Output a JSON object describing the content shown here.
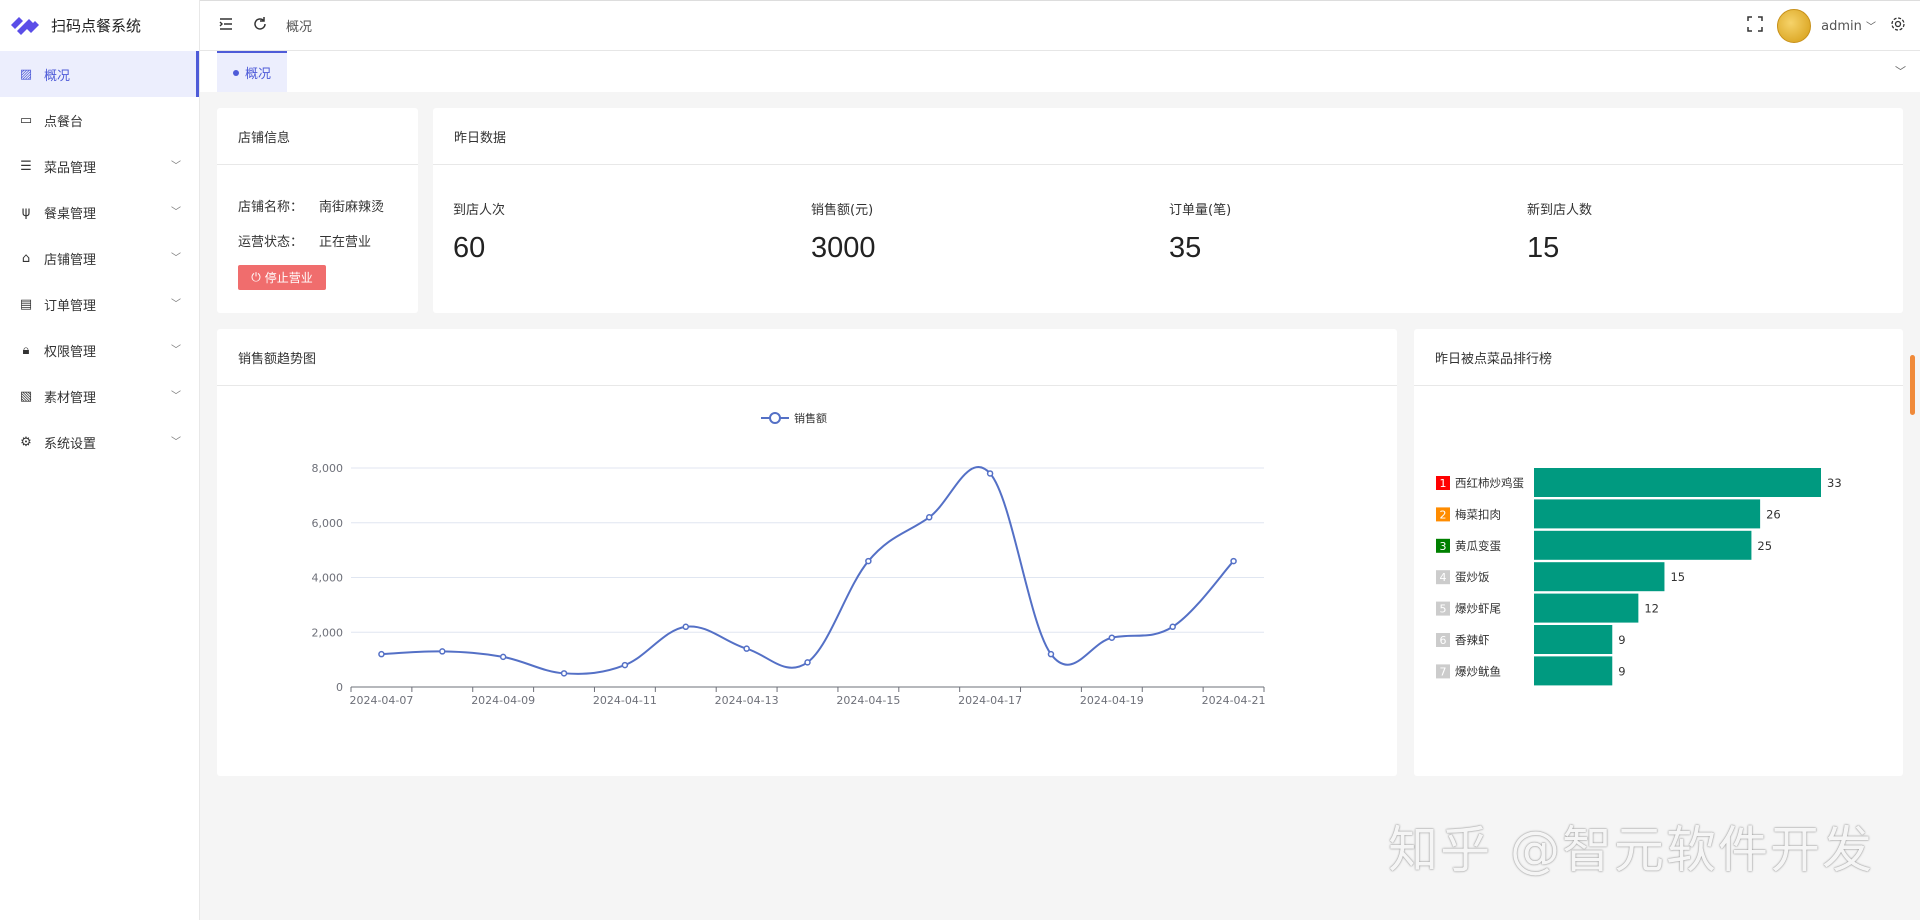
{
  "app": {
    "title": "扫码点餐系统",
    "brand_color": "#4e5bd8"
  },
  "sidebar": {
    "items": [
      {
        "label": "概况",
        "icon": "chart-icon",
        "active": true
      },
      {
        "label": "点餐台",
        "icon": "monitor-icon"
      },
      {
        "label": "菜品管理",
        "icon": "menu-icon",
        "expandable": true
      },
      {
        "label": "餐桌管理",
        "icon": "fork-knife-icon",
        "expandable": true
      },
      {
        "label": "店铺管理",
        "icon": "store-icon",
        "expandable": true
      },
      {
        "label": "订单管理",
        "icon": "document-icon",
        "expandable": true
      },
      {
        "label": "权限管理",
        "icon": "lock-icon",
        "expandable": true
      },
      {
        "label": "素材管理",
        "icon": "image-icon",
        "expandable": true
      },
      {
        "label": "系统设置",
        "icon": "gear-icon",
        "expandable": true
      }
    ]
  },
  "header": {
    "breadcrumb": "概况",
    "user": "admin"
  },
  "tabs": [
    {
      "label": "概况",
      "active": true
    }
  ],
  "store": {
    "title": "店铺信息",
    "name_label": "店铺名称：",
    "name": "南街麻辣烫",
    "status_label": "运营状态：",
    "status": "正在营业",
    "stop_button": "停止营业",
    "stop_color": "#f06d6d"
  },
  "yesterday": {
    "title": "昨日数据",
    "stats": [
      {
        "label": "到店人次",
        "value": "60"
      },
      {
        "label": "销售额(元)",
        "value": "3000"
      },
      {
        "label": "订单量(笔)",
        "value": "35"
      },
      {
        "label": "新到店人数",
        "value": "15"
      }
    ]
  },
  "trend": {
    "title": "销售额趋势图"
  },
  "ranking": {
    "title": "昨日被点菜品排行榜"
  },
  "chart_data": [
    {
      "type": "line",
      "legend": [
        "销售额"
      ],
      "legend_placement": "top-center",
      "smooth": true,
      "color": "#5470c6",
      "x": [
        "2024-04-07",
        "2024-04-08",
        "2024-04-09",
        "2024-04-10",
        "2024-04-11",
        "2024-04-12",
        "2024-04-13",
        "2024-04-14",
        "2024-04-15",
        "2024-04-16",
        "2024-04-17",
        "2024-04-18",
        "2024-04-19",
        "2024-04-20",
        "2024-04-21"
      ],
      "x_tick_labels": [
        "2024-04-07",
        "2024-04-09",
        "2024-04-11",
        "2024-04-13",
        "2024-04-15",
        "2024-04-17",
        "2024-04-19",
        "2024-04-21"
      ],
      "series": [
        {
          "name": "销售额",
          "values": [
            1200,
            1300,
            1100,
            500,
            800,
            2200,
            1400,
            900,
            4600,
            6200,
            7800,
            1200,
            1800,
            2200,
            4600
          ]
        }
      ],
      "y_ticks": [
        "0",
        "2,000",
        "4,000",
        "6,000",
        "8,000"
      ],
      "ylim": [
        0,
        8000
      ],
      "grid": true
    },
    {
      "type": "bar",
      "orientation": "horizontal",
      "color": "#009a80",
      "categories": [
        "西红柿炒鸡蛋",
        "梅菜扣肉",
        "黄瓜变蛋",
        "蛋炒饭",
        "爆炒虾尾",
        "香辣虾",
        "爆炒鱿鱼"
      ],
      "ranks": [
        "1",
        "2",
        "3",
        "4",
        "5",
        "6",
        "7"
      ],
      "rank_colors": [
        "#ff0000",
        "#ff8c00",
        "#008000",
        "#cccccc",
        "#cccccc",
        "#cccccc",
        "#cccccc"
      ],
      "values": [
        33,
        26,
        25,
        15,
        12,
        9,
        9
      ]
    }
  ],
  "watermark": "知乎 @智元软件开发"
}
